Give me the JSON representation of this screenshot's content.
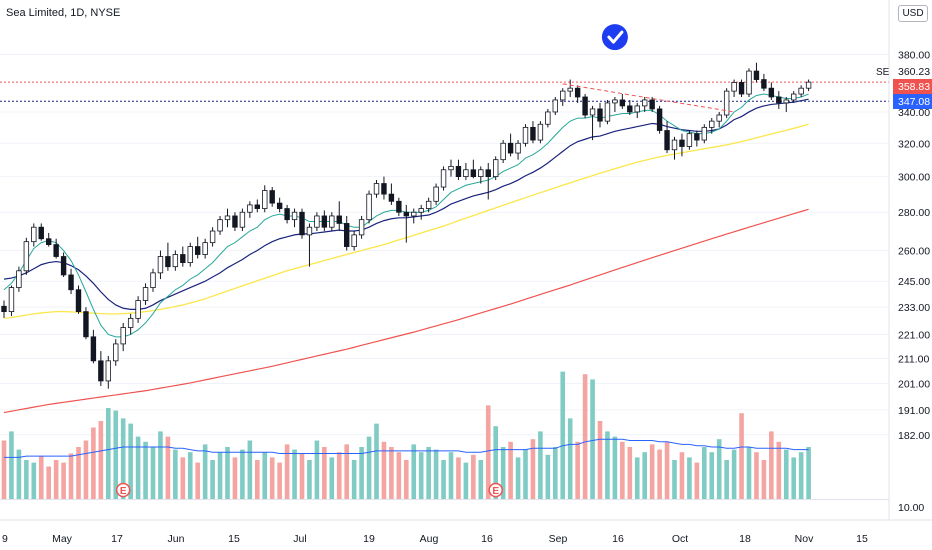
{
  "legend": {
    "title": "Sea Limited, 1D, NYSE"
  },
  "currency": "USD",
  "chart_data": {
    "type": "candlestick",
    "y_scale": "log",
    "ylim": [
      170,
      400
    ],
    "y_ticks": [
      380,
      340,
      320,
      300,
      280,
      260,
      245,
      233,
      221,
      211,
      201,
      191,
      182
    ],
    "y_tick_labels": [
      "380.00",
      "340.00",
      "320.00",
      "300.00",
      "280.00",
      "260.00",
      "245.00",
      "233.00",
      "221.00",
      "211.00",
      "201.00",
      "191.00",
      "182.00"
    ],
    "volume_tick_label": "10.00",
    "x_tick_labels": [
      "9",
      "May",
      "17",
      "Jun",
      "15",
      "Jul",
      "19",
      "Aug",
      "16",
      "Sep",
      "16",
      "Oct",
      "18",
      "Nov",
      "15"
    ],
    "price_labels": [
      {
        "value": 360.23,
        "text": "360.23",
        "kind": "last",
        "color": "#131722"
      },
      {
        "value": 358.83,
        "text": "358.83",
        "kind": "level",
        "color": "#ef5350"
      },
      {
        "value": 347.08,
        "text": "347.08",
        "kind": "level",
        "color": "#2962ff"
      }
    ],
    "symbol_tag": "SE",
    "horizontal_lines": [
      {
        "value": 360.23,
        "style": "dotted",
        "color": "#ef5350"
      },
      {
        "value": 347.08,
        "style": "dotted",
        "color": "#1a237e"
      }
    ],
    "trendline": {
      "from": [
        75,
        359
      ],
      "to": [
        98,
        340
      ],
      "color": "#ef5350",
      "style": "dashed"
    },
    "earnings_markers": [
      {
        "index": 16,
        "label": "E"
      },
      {
        "index": 66,
        "label": "E"
      }
    ],
    "check_marker": {
      "index": 82,
      "value": 393
    },
    "candles_ohlc": [
      [
        233.4,
        236.0,
        228.2,
        231.0
      ],
      [
        231.0,
        243.0,
        229.0,
        242.0
      ],
      [
        242.0,
        252.0,
        240.0,
        250.0
      ],
      [
        250.0,
        266.5,
        248.0,
        264.5
      ],
      [
        264.5,
        274.0,
        262.0,
        272.0
      ],
      [
        272.0,
        274.0,
        265.0,
        266.0
      ],
      [
        266.0,
        269.0,
        262.0,
        263.0
      ],
      [
        263.0,
        266.0,
        256.0,
        257.0
      ],
      [
        257.0,
        259.0,
        247.0,
        248.0
      ],
      [
        248.0,
        251.0,
        239.0,
        241.0
      ],
      [
        241.0,
        243.0,
        230.0,
        231.0
      ],
      [
        231.0,
        233.0,
        219.0,
        220.0
      ],
      [
        220.0,
        223.0,
        209.0,
        210.0
      ],
      [
        210.0,
        214.0,
        200.0,
        202.0
      ],
      [
        202.0,
        212.0,
        199.0,
        210.0
      ],
      [
        210.0,
        219.0,
        208.0,
        217.0
      ],
      [
        217.0,
        226.0,
        214.0,
        224.0
      ],
      [
        224.0,
        230.0,
        221.0,
        228.0
      ],
      [
        228.0,
        238.0,
        226.0,
        236.0
      ],
      [
        236.0,
        244.0,
        234.0,
        242.0
      ],
      [
        242.0,
        251.0,
        240.0,
        249.0
      ],
      [
        249.0,
        260.0,
        246.0,
        257.0
      ],
      [
        257.0,
        264.0,
        250.0,
        252.0
      ],
      [
        252.0,
        260.0,
        250.0,
        258.0
      ],
      [
        258.0,
        262.0,
        252.0,
        254.0
      ],
      [
        254.0,
        264.0,
        252.0,
        262.0
      ],
      [
        262.0,
        267.0,
        256.0,
        258.0
      ],
      [
        258.0,
        266.0,
        256.0,
        264.0
      ],
      [
        264.0,
        272.0,
        262.0,
        270.0
      ],
      [
        270.0,
        278.0,
        268.0,
        276.0
      ],
      [
        276.0,
        282.0,
        272.0,
        278.0
      ],
      [
        278.0,
        280.0,
        270.0,
        272.0
      ],
      [
        272.0,
        282.0,
        270.0,
        280.0
      ],
      [
        280.0,
        286.0,
        277.0,
        284.0
      ],
      [
        284.0,
        287.0,
        280.0,
        282.0
      ],
      [
        282.0,
        295.0,
        280.0,
        292.0
      ],
      [
        292.0,
        294.0,
        283.0,
        285.0
      ],
      [
        285.0,
        288.0,
        280.0,
        282.0
      ],
      [
        282.0,
        284.0,
        274.0,
        276.0
      ],
      [
        276.0,
        282.0,
        272.0,
        280.0
      ],
      [
        280.0,
        282.0,
        266.0,
        268.0
      ],
      [
        268.0,
        274.0,
        252.0,
        272.0
      ],
      [
        272.0,
        280.0,
        270.0,
        278.0
      ],
      [
        278.0,
        281.0,
        270.0,
        272.0
      ],
      [
        272.0,
        280.0,
        270.0,
        278.0
      ],
      [
        278.0,
        286.0,
        270.0,
        274.0
      ],
      [
        274.0,
        278.0,
        260.0,
        262.0
      ],
      [
        262.0,
        270.0,
        260.0,
        268.0
      ],
      [
        268.0,
        278.0,
        266.0,
        276.0
      ],
      [
        276.0,
        292.0,
        274.0,
        290.0
      ],
      [
        290.0,
        298.0,
        288.0,
        296.0
      ],
      [
        296.0,
        300.0,
        287.0,
        290.0
      ],
      [
        290.0,
        296.0,
        284.0,
        286.0
      ],
      [
        286.0,
        288.0,
        278.0,
        280.0
      ],
      [
        280.0,
        284.0,
        264.0,
        278.0
      ],
      [
        278.0,
        282.0,
        274.0,
        280.0
      ],
      [
        280.0,
        284.0,
        276.0,
        282.0
      ],
      [
        282.0,
        288.0,
        280.0,
        286.0
      ],
      [
        286.0,
        296.0,
        284.0,
        294.0
      ],
      [
        294.0,
        306.0,
        292.0,
        304.0
      ],
      [
        304.0,
        310.0,
        300.0,
        306.0
      ],
      [
        306.0,
        310.0,
        298.0,
        300.0
      ],
      [
        300.0,
        308.0,
        298.0,
        304.0
      ],
      [
        304.0,
        310.0,
        299.0,
        300.0
      ],
      [
        300.0,
        306.0,
        296.0,
        304.0
      ],
      [
        304.0,
        308.0,
        287.0,
        300.0
      ],
      [
        300.0,
        312.0,
        298.0,
        310.0
      ],
      [
        310.0,
        322.0,
        308.0,
        320.0
      ],
      [
        320.0,
        326.0,
        312.0,
        314.0
      ],
      [
        314.0,
        322.0,
        310.0,
        320.0
      ],
      [
        320.0,
        332.0,
        318.0,
        330.0
      ],
      [
        330.0,
        334.0,
        320.0,
        322.0
      ],
      [
        322.0,
        334.0,
        320.0,
        332.0
      ],
      [
        332.0,
        342.0,
        330.0,
        340.0
      ],
      [
        340.0,
        350.0,
        338.0,
        348.0
      ],
      [
        348.0,
        356.0,
        344.0,
        354.0
      ],
      [
        354.0,
        362.0,
        350.0,
        356.0
      ],
      [
        356.0,
        358.0,
        346.0,
        350.0
      ],
      [
        350.0,
        352.0,
        336.0,
        338.0
      ],
      [
        338.0,
        344.0,
        322.0,
        342.0
      ],
      [
        342.0,
        346.0,
        330.0,
        334.0
      ],
      [
        334.0,
        348.0,
        332.0,
        346.0
      ],
      [
        346.0,
        350.0,
        340.0,
        348.0
      ],
      [
        348.0,
        352.0,
        342.0,
        344.0
      ],
      [
        344.0,
        348.0,
        338.0,
        340.0
      ],
      [
        340.0,
        346.0,
        336.0,
        344.0
      ],
      [
        344.0,
        350.0,
        340.0,
        348.0
      ],
      [
        348.0,
        350.0,
        340.0,
        342.0
      ],
      [
        342.0,
        344.0,
        326.0,
        328.0
      ],
      [
        328.0,
        334.0,
        314.0,
        316.0
      ],
      [
        316.0,
        324.0,
        310.0,
        322.0
      ],
      [
        322.0,
        326.0,
        312.0,
        318.0
      ],
      [
        318.0,
        328.0,
        316.0,
        326.0
      ],
      [
        326.0,
        328.0,
        318.0,
        322.0
      ],
      [
        322.0,
        332.0,
        320.0,
        330.0
      ],
      [
        330.0,
        336.0,
        326.0,
        334.0
      ],
      [
        334.0,
        340.0,
        330.0,
        338.0
      ],
      [
        338.0,
        356.0,
        336.0,
        354.0
      ],
      [
        354.0,
        362.0,
        350.0,
        360.0
      ],
      [
        360.0,
        362.0,
        350.0,
        352.0
      ],
      [
        352.0,
        370.0,
        350.0,
        368.0
      ],
      [
        368.0,
        374.0,
        360.0,
        362.0
      ],
      [
        362.0,
        366.0,
        354.0,
        356.0
      ],
      [
        356.0,
        360.0,
        348.0,
        350.0
      ],
      [
        350.0,
        354.0,
        342.0,
        346.0
      ],
      [
        346.0,
        350.0,
        340.0,
        348.0
      ],
      [
        348.0,
        354.0,
        346.0,
        352.0
      ],
      [
        352.0,
        358.0,
        350.0,
        356.0
      ],
      [
        356.0,
        362.0,
        354.0,
        360.2
      ]
    ],
    "ema_fast": [
      241.0,
      244.0,
      249.0,
      255.0,
      261.0,
      264.0,
      265.0,
      264.0,
      260.0,
      255.0,
      248.0,
      240.0,
      232.0,
      225.0,
      221.0,
      220.0,
      220.0,
      221.0,
      223.0,
      226.0,
      230.0,
      235.0,
      238.0,
      241.0,
      243.0,
      246.0,
      248.0,
      251.0,
      254.0,
      258.0,
      262.0,
      264.0,
      267.0,
      270.0,
      272.0,
      276.0,
      278.0,
      279.0,
      278.0,
      278.0,
      277.0,
      275.0,
      275.0,
      275.0,
      275.0,
      275.0,
      273.0,
      272.0,
      272.0,
      275.0,
      278.0,
      280.0,
      281.0,
      281.0,
      280.0,
      280.0,
      280.0,
      281.0,
      283.0,
      287.0,
      291.0,
      293.0,
      295.0,
      296.0,
      297.0,
      298.0,
      300.0,
      303.0,
      305.0,
      307.0,
      311.0,
      313.0,
      316.0,
      320.0,
      325.0,
      330.0,
      334.0,
      336.0,
      336.0,
      337.0,
      336.0,
      337.0,
      338.0,
      339.0,
      339.0,
      340.0,
      341.0,
      341.0,
      338.0,
      334.0,
      331.0,
      328.0,
      327.0,
      326.0,
      326.0,
      327.0,
      329.0,
      334.0,
      340.0,
      343.0,
      348.0,
      351.0,
      352.0,
      351.0,
      350.0,
      349.0,
      349.0,
      350.0,
      352.0
    ],
    "ema_mid": [
      246.0,
      246.5,
      247.5,
      249.0,
      251.0,
      253.0,
      254.0,
      254.5,
      254.0,
      252.5,
      250.5,
      247.5,
      244.0,
      240.0,
      236.5,
      234.0,
      232.5,
      232.0,
      232.0,
      232.5,
      234.0,
      236.0,
      237.5,
      239.0,
      240.5,
      242.0,
      243.5,
      245.0,
      247.0,
      249.0,
      251.5,
      253.5,
      255.5,
      258.0,
      260.0,
      262.5,
      264.5,
      266.0,
      267.0,
      268.0,
      268.5,
      268.5,
      269.0,
      269.5,
      270.0,
      270.5,
      270.0,
      270.0,
      270.5,
      272.0,
      274.0,
      275.5,
      276.5,
      277.0,
      277.0,
      277.5,
      278.0,
      278.5,
      280.0,
      282.0,
      284.5,
      286.0,
      287.5,
      289.0,
      290.0,
      291.0,
      292.5,
      294.5,
      296.0,
      298.0,
      300.5,
      302.5,
      305.0,
      308.0,
      311.5,
      315.0,
      318.5,
      321.0,
      322.5,
      324.0,
      324.5,
      326.0,
      327.5,
      328.5,
      329.5,
      330.5,
      331.5,
      332.5,
      332.0,
      330.5,
      329.5,
      328.5,
      328.0,
      327.5,
      327.5,
      328.0,
      329.0,
      331.5,
      335.0,
      337.0,
      340.0,
      342.5,
      344.0,
      345.0,
      345.5,
      346.0,
      346.5,
      347.5,
      348.5
    ],
    "sma_50": [
      228.0,
      228.4,
      228.9,
      229.5,
      230.0,
      230.4,
      230.7,
      231.0,
      231.0,
      230.9,
      230.7,
      230.5,
      230.3,
      230.1,
      230.0,
      230.0,
      230.1,
      230.3,
      230.6,
      231.0,
      231.5,
      232.0,
      232.6,
      233.3,
      234.0,
      234.9,
      235.8,
      236.8,
      238.0,
      239.2,
      240.4,
      241.6,
      242.8,
      244.0,
      245.2,
      246.4,
      247.6,
      248.8,
      250.0,
      251.0,
      252.0,
      253.0,
      254.0,
      255.0,
      256.0,
      257.0,
      258.0,
      259.0,
      260.0,
      261.0,
      262.0,
      263.0,
      264.2,
      265.4,
      266.6,
      267.8,
      269.0,
      270.2,
      271.4,
      272.6,
      274.0,
      275.4,
      276.8,
      278.2,
      279.6,
      281.0,
      282.4,
      283.8,
      285.2,
      286.6,
      288.0,
      289.4,
      290.8,
      292.2,
      293.6,
      295.0,
      296.4,
      297.8,
      299.2,
      300.6,
      302.0,
      303.3,
      304.6,
      305.9,
      307.2,
      308.5,
      309.6,
      310.7,
      311.7,
      312.6,
      313.4,
      314.2,
      315.0,
      315.8,
      316.6,
      317.4,
      318.2,
      319.0,
      320.0,
      321.0,
      322.2,
      323.4,
      324.6,
      325.8,
      327.0,
      328.2,
      329.4,
      330.6,
      332.0
    ],
    "sma_200": [
      190.0,
      190.5,
      191.0,
      191.5,
      192.0,
      192.5,
      193.0,
      193.4,
      193.8,
      194.2,
      194.6,
      195.0,
      195.4,
      195.8,
      196.2,
      196.6,
      197.0,
      197.4,
      197.8,
      198.2,
      198.7,
      199.2,
      199.7,
      200.2,
      200.7,
      201.2,
      201.8,
      202.4,
      203.0,
      203.6,
      204.2,
      204.8,
      205.4,
      206.0,
      206.6,
      207.2,
      207.8,
      208.5,
      209.2,
      209.9,
      210.6,
      211.3,
      212.0,
      212.7,
      213.4,
      214.1,
      214.8,
      215.6,
      216.4,
      217.2,
      218.0,
      218.8,
      219.6,
      220.4,
      221.2,
      222.0,
      222.9,
      223.8,
      224.7,
      225.6,
      226.5,
      227.4,
      228.4,
      229.4,
      230.4,
      231.4,
      232.4,
      233.4,
      234.4,
      235.5,
      236.6,
      237.7,
      238.8,
      239.9,
      241.0,
      242.1,
      243.2,
      244.4,
      245.6,
      246.8,
      248.0,
      249.2,
      250.4,
      251.6,
      252.8,
      254.0,
      255.2,
      256.4,
      257.6,
      258.8,
      260.0,
      261.2,
      262.4,
      263.6,
      264.8,
      266.0,
      267.2,
      268.4,
      269.6,
      270.8,
      272.0,
      273.2,
      274.4,
      275.6,
      276.8,
      278.0,
      279.2,
      280.4,
      281.6
    ],
    "volume": [
      45,
      52,
      38,
      30,
      28,
      33,
      25,
      30,
      28,
      35,
      40,
      45,
      55,
      60,
      70,
      68,
      62,
      58,
      48,
      44,
      40,
      52,
      48,
      38,
      32,
      36,
      28,
      42,
      30,
      36,
      40,
      32,
      38,
      45,
      30,
      36,
      32,
      28,
      42,
      38,
      35,
      30,
      45,
      40,
      32,
      36,
      42,
      30,
      40,
      48,
      58,
      44,
      40,
      36,
      30,
      42,
      36,
      40,
      38,
      30,
      36,
      32,
      28,
      34,
      30,
      72,
      56,
      40,
      44,
      32,
      38,
      46,
      52,
      34,
      40,
      98,
      62,
      44,
      96,
      92,
      60,
      52,
      48,
      44,
      40,
      32,
      36,
      42,
      38,
      44,
      30,
      36,
      32,
      28,
      40,
      36,
      46,
      30,
      38,
      66,
      40,
      36,
      30,
      52,
      44,
      38,
      32,
      36,
      40
    ],
    "volume_ma": [
      32,
      32,
      32,
      33,
      33,
      33,
      33,
      33,
      33,
      33,
      34,
      35,
      36,
      37,
      38,
      39,
      40,
      40,
      40,
      40,
      40,
      40,
      40,
      39,
      39,
      38,
      37,
      37,
      36,
      36,
      36,
      36,
      36,
      36,
      36,
      36,
      36,
      35,
      35,
      35,
      35,
      35,
      35,
      35,
      35,
      35,
      35,
      35,
      35,
      36,
      37,
      37,
      37,
      37,
      37,
      37,
      37,
      37,
      37,
      37,
      37,
      37,
      36,
      36,
      36,
      37,
      38,
      38,
      38,
      38,
      38,
      39,
      39,
      39,
      39,
      41,
      42,
      42,
      44,
      45,
      46,
      46,
      46,
      46,
      45,
      45,
      45,
      45,
      44,
      44,
      43,
      42,
      42,
      41,
      41,
      40,
      40,
      39,
      39,
      40,
      40,
      39,
      39,
      39,
      39,
      39,
      38,
      38,
      38
    ]
  }
}
